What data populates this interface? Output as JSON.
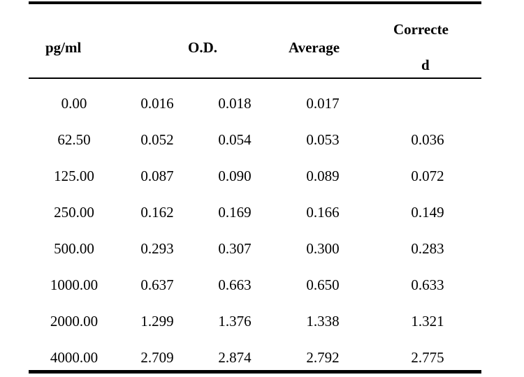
{
  "table": {
    "headers": {
      "conc": "pg/ml",
      "od": "O.D.",
      "average": "Average",
      "corrected_line1": "Correcte",
      "corrected_line2": "d"
    },
    "rows": [
      {
        "conc": "0.00",
        "od1": "0.016",
        "od2": "0.018",
        "average": "0.017",
        "corrected": ""
      },
      {
        "conc": "62.50",
        "od1": "0.052",
        "od2": "0.054",
        "average": "0.053",
        "corrected": "0.036"
      },
      {
        "conc": "125.00",
        "od1": "0.087",
        "od2": "0.090",
        "average": "0.089",
        "corrected": "0.072"
      },
      {
        "conc": "250.00",
        "od1": "0.162",
        "od2": "0.169",
        "average": "0.166",
        "corrected": "0.149"
      },
      {
        "conc": "500.00",
        "od1": "0.293",
        "od2": "0.307",
        "average": "0.300",
        "corrected": "0.283"
      },
      {
        "conc": "1000.00",
        "od1": "0.637",
        "od2": "0.663",
        "average": "0.650",
        "corrected": "0.633"
      },
      {
        "conc": "2000.00",
        "od1": "1.299",
        "od2": "1.376",
        "average": "1.338",
        "corrected": "1.321"
      },
      {
        "conc": "4000.00",
        "od1": "2.709",
        "od2": "2.874",
        "average": "2.792",
        "corrected": "2.775"
      }
    ]
  }
}
